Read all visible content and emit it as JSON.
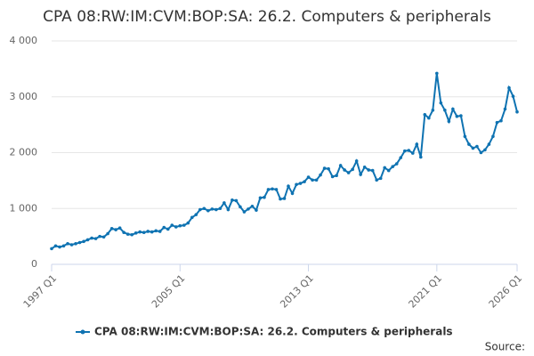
{
  "chart_data": {
    "type": "line",
    "title": "CPA 08:RW:IM:CVM:BOP:SA: 26.2. Computers & peripherals",
    "source": "Source:",
    "legend": "bottom",
    "grid": true,
    "categories": [
      "1997 Q1",
      null,
      null,
      null,
      null,
      null,
      null,
      null,
      null,
      null,
      null,
      null,
      null,
      null,
      null,
      null,
      null,
      null,
      null,
      null,
      null,
      null,
      null,
      null,
      null,
      null,
      null,
      null,
      null,
      null,
      null,
      null,
      "2005 Q1",
      null,
      null,
      null,
      null,
      null,
      null,
      null,
      null,
      null,
      null,
      null,
      null,
      null,
      null,
      null,
      null,
      null,
      null,
      null,
      null,
      null,
      null,
      null,
      null,
      null,
      null,
      null,
      null,
      null,
      null,
      null,
      "2013 Q1",
      null,
      null,
      null,
      null,
      null,
      null,
      null,
      null,
      null,
      null,
      null,
      null,
      null,
      null,
      null,
      null,
      null,
      null,
      null,
      null,
      null,
      null,
      null,
      null,
      null,
      null,
      null,
      null,
      null,
      null,
      null,
      "2021 Q1",
      null,
      null,
      null,
      null,
      null,
      null,
      null,
      null,
      null,
      null,
      null,
      null,
      null,
      null,
      null,
      null,
      null,
      null,
      null,
      "2026 Q1"
    ],
    "series": [
      {
        "name": "CPA 08:RW:IM:CVM:BOP:SA: 26.2. Computers & peripherals",
        "color": "#0f73b2",
        "values": [
          280,
          330,
          310,
          330,
          370,
          350,
          370,
          390,
          410,
          440,
          470,
          460,
          500,
          490,
          550,
          640,
          620,
          650,
          570,
          540,
          530,
          560,
          580,
          570,
          590,
          580,
          600,
          590,
          660,
          630,
          700,
          670,
          690,
          700,
          740,
          840,
          890,
          980,
          1000,
          960,
          990,
          980,
          1000,
          1100,
          980,
          1150,
          1140,
          1030,
          940,
          990,
          1040,
          970,
          1190,
          1200,
          1340,
          1350,
          1340,
          1170,
          1180,
          1400,
          1270,
          1430,
          1450,
          1480,
          1560,
          1510,
          1510,
          1600,
          1720,
          1710,
          1570,
          1590,
          1770,
          1690,
          1640,
          1700,
          1850,
          1610,
          1740,
          1690,
          1680,
          1510,
          1540,
          1730,
          1680,
          1750,
          1800,
          1910,
          2030,
          2040,
          1990,
          2150,
          1920,
          2680,
          2620,
          2760,
          3420,
          2890,
          2760,
          2560,
          2780,
          2650,
          2660,
          2290,
          2150,
          2080,
          2110,
          2000,
          2050,
          2150,
          2290,
          2540,
          2570,
          2780,
          3160,
          3010,
          2730
        ]
      }
    ],
    "ylim": [
      0,
      4000
    ],
    "yticks": [
      0,
      {
        "value": 1000,
        "label": "1 000"
      },
      {
        "value": 2000,
        "label": "2 000"
      },
      {
        "value": 3000,
        "label": "3 000"
      },
      {
        "value": 4000,
        "label": "4 000"
      }
    ]
  }
}
